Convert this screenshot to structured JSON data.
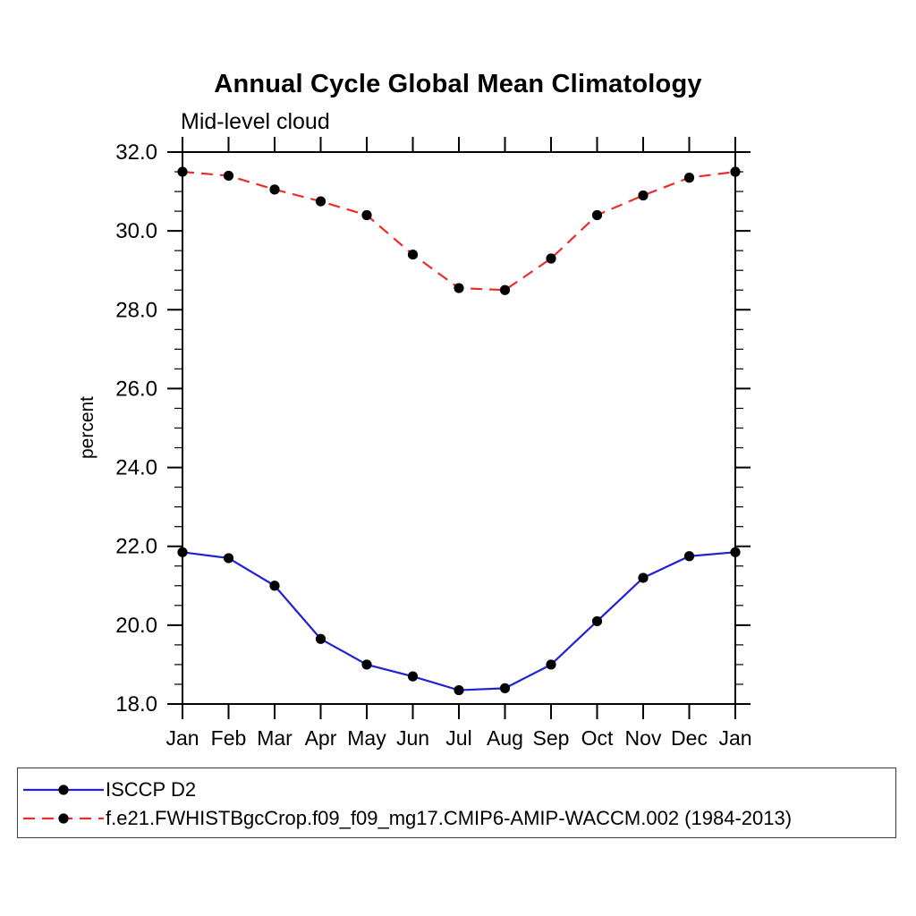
{
  "title": "Annual Cycle Global Mean Climatology",
  "chart_data": {
    "type": "line",
    "title": "Annual Cycle Global Mean Climatology",
    "subtitle": "Mid-level cloud",
    "ylabel": "percent",
    "xlabel": "",
    "categories": [
      "Jan",
      "Feb",
      "Mar",
      "Apr",
      "May",
      "Jun",
      "Jul",
      "Aug",
      "Sep",
      "Oct",
      "Nov",
      "Dec",
      "Jan"
    ],
    "ylim": [
      18.0,
      32.0
    ],
    "ytick_labels": [
      "18.0",
      "20.0",
      "22.0",
      "24.0",
      "26.0",
      "28.0",
      "30.0",
      "32.0"
    ],
    "ytick_major_interval": 2.0,
    "ytick_minor_interval": 0.5,
    "grid": false,
    "legend_position": "bottom-outside-box",
    "frame_color": "#000000",
    "series": [
      {
        "name": "ISCCP D2",
        "color": "#2121d4",
        "line_style": "solid",
        "marker": "filled-circle",
        "marker_color": "#000000",
        "values": [
          21.85,
          21.7,
          21.0,
          19.65,
          19.0,
          18.7,
          18.35,
          18.4,
          19.0,
          20.1,
          21.2,
          21.75,
          21.85
        ]
      },
      {
        "name": "f.e21.FWHISTBgcCrop.f09_f09_mg17.CMIP6-AMIP-WACCM.002 (1984-2013)",
        "color": "#ee2b2b",
        "line_style": "dashed",
        "marker": "filled-circle",
        "marker_color": "#000000",
        "values": [
          31.5,
          31.4,
          31.05,
          30.75,
          30.4,
          29.4,
          28.55,
          28.5,
          29.3,
          30.4,
          30.9,
          31.35,
          31.5
        ]
      }
    ]
  }
}
